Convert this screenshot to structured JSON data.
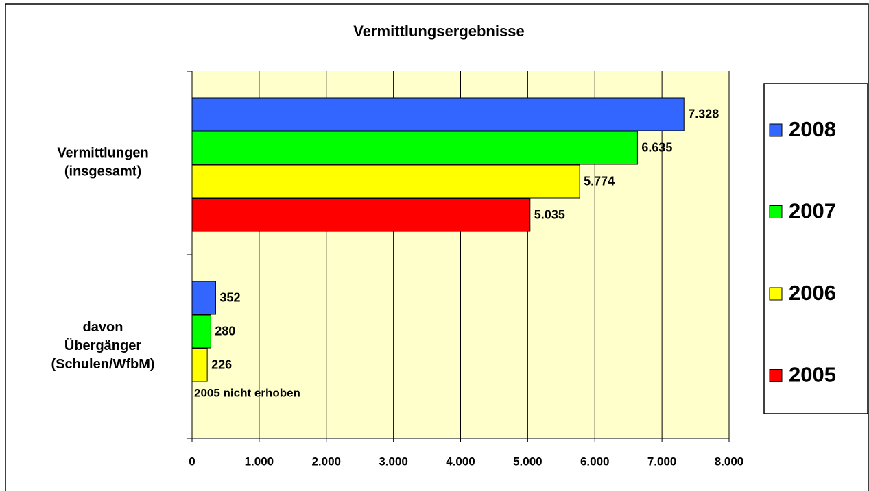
{
  "chart_data": {
    "type": "hbar",
    "title": "Vermittlungsergebnisse",
    "categories": [
      "Vermittlungen (insgesamt)",
      "davon Übergänger (Schulen/WfbM)"
    ],
    "series": [
      {
        "name": "2008",
        "color": "#3366ff",
        "values": [
          7328,
          352
        ],
        "value_labels": [
          "7.328",
          "352"
        ]
      },
      {
        "name": "2007",
        "color": "#00ff00",
        "values": [
          6635,
          280
        ],
        "value_labels": [
          "6.635",
          "280"
        ]
      },
      {
        "name": "2006",
        "color": "#ffff00",
        "values": [
          5774,
          226
        ],
        "value_labels": [
          "5.774",
          "226"
        ]
      },
      {
        "name": "2005",
        "color": "#ff0000",
        "values": [
          5035,
          null
        ],
        "value_labels": [
          "5.035",
          null
        ]
      }
    ],
    "annotations": [
      "2005 nicht erhoben"
    ],
    "xlim": [
      0,
      8000
    ],
    "xticks": [
      0,
      {
        "value": 1000,
        "label": "1.000"
      },
      {
        "value": 2000,
        "label": "2.000"
      },
      {
        "value": 3000,
        "label": "3.000"
      },
      {
        "value": 4000,
        "label": "4.000"
      },
      {
        "value": 5000,
        "label": "5.000"
      },
      {
        "value": 6000,
        "label": "6.000"
      },
      {
        "value": 7000,
        "label": "7.000"
      },
      {
        "value": 8000,
        "label": "8.000"
      }
    ],
    "grid": true,
    "legend": "right",
    "plot_background": "#ffffcc"
  }
}
